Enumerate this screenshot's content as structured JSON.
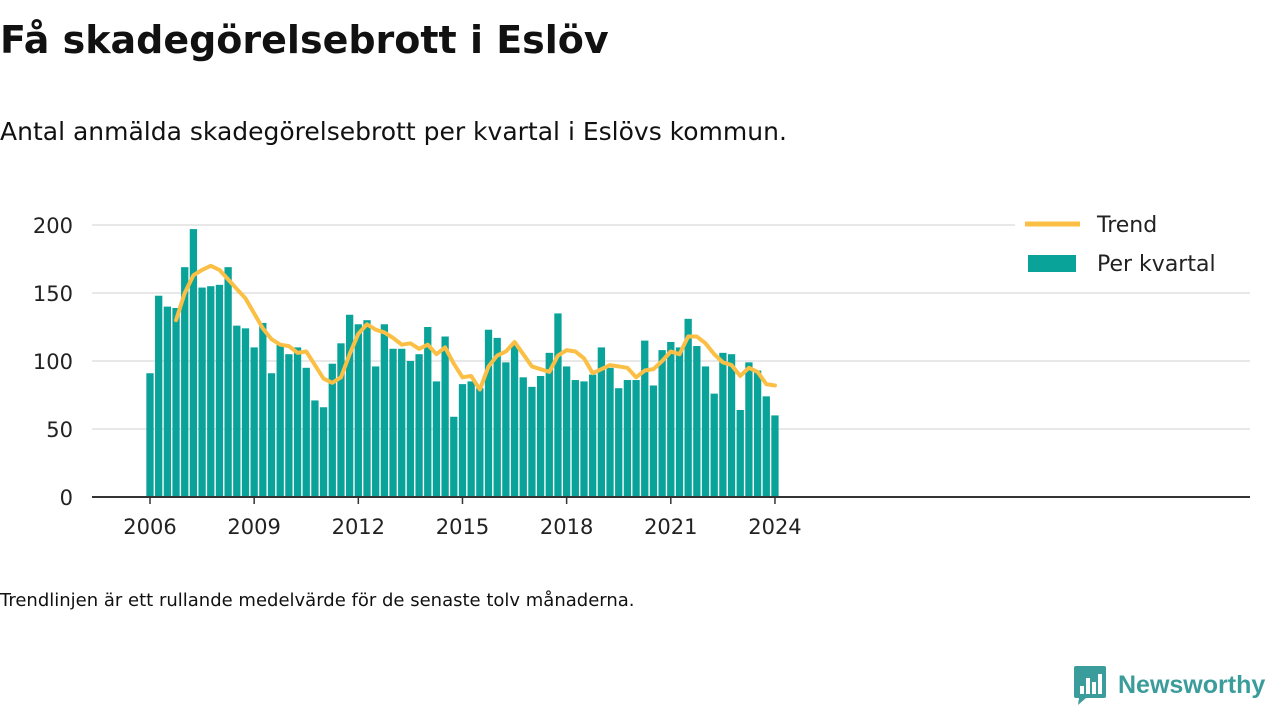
{
  "header": {
    "title": "Få skadegörelsebrott i Eslöv",
    "subtitle": "Antal anmälda skadegörelsebrott per kvartal i Eslövs kommun."
  },
  "footer": {
    "note": "Trendlinjen är ett rullande medelvärde för de senaste tolv månaderna.",
    "brand": "Newsworthy"
  },
  "colors": {
    "bars": "#0aa39a",
    "trend": "#fbbf45",
    "brand": "#3a9d9b"
  },
  "chart_data": {
    "type": "bar",
    "x_unit": "quarter",
    "x": [
      "2006Q1",
      "2006Q2",
      "2006Q3",
      "2006Q4",
      "2007Q1",
      "2007Q2",
      "2007Q3",
      "2007Q4",
      "2008Q1",
      "2008Q2",
      "2008Q3",
      "2008Q4",
      "2009Q1",
      "2009Q2",
      "2009Q3",
      "2009Q4",
      "2010Q1",
      "2010Q2",
      "2010Q3",
      "2010Q4",
      "2011Q1",
      "2011Q2",
      "2011Q3",
      "2011Q4",
      "2012Q1",
      "2012Q2",
      "2012Q3",
      "2012Q4",
      "2013Q1",
      "2013Q2",
      "2013Q3",
      "2013Q4",
      "2014Q1",
      "2014Q2",
      "2014Q3",
      "2014Q4",
      "2015Q1",
      "2015Q2",
      "2015Q3",
      "2015Q4",
      "2016Q1",
      "2016Q2",
      "2016Q3",
      "2016Q4",
      "2017Q1",
      "2017Q2",
      "2017Q3",
      "2017Q4",
      "2018Q1",
      "2018Q2",
      "2018Q3",
      "2018Q4",
      "2019Q1",
      "2019Q2",
      "2019Q3",
      "2019Q4",
      "2020Q1",
      "2020Q2",
      "2020Q3",
      "2020Q4",
      "2021Q1",
      "2021Q2",
      "2021Q3",
      "2021Q4",
      "2022Q1",
      "2022Q2",
      "2022Q3",
      "2022Q4",
      "2023Q1",
      "2023Q2",
      "2023Q3",
      "2023Q4",
      "2024Q1"
    ],
    "series": [
      {
        "name": "Per kvartal",
        "type": "bar",
        "values": [
          91,
          148,
          140,
          139,
          169,
          197,
          154,
          155,
          156,
          169,
          126,
          124,
          110,
          128,
          91,
          112,
          105,
          110,
          95,
          71,
          66,
          98,
          113,
          134,
          127,
          130,
          96,
          127,
          109,
          109,
          100,
          105,
          125,
          85,
          118,
          59,
          83,
          85,
          80,
          123,
          117,
          99,
          112,
          88,
          81,
          89,
          106,
          135,
          96,
          86,
          85,
          90,
          110,
          95,
          80,
          86,
          86,
          115,
          82,
          108,
          114,
          110,
          131,
          111,
          96,
          76,
          106,
          105,
          64,
          99,
          93,
          74,
          60
        ]
      },
      {
        "name": "Trend",
        "type": "line",
        "values": [
          null,
          null,
          null,
          130,
          150,
          163,
          167,
          170,
          167,
          160,
          153,
          146,
          135,
          124,
          116,
          112,
          111,
          106,
          107,
          97,
          87,
          84,
          88,
          105,
          120,
          127,
          123,
          121,
          117,
          112,
          113,
          109,
          112,
          105,
          110,
          98,
          88,
          89,
          79,
          96,
          104,
          107,
          114,
          105,
          96,
          94,
          92,
          104,
          108,
          107,
          102,
          91,
          94,
          97,
          96,
          95,
          88,
          93,
          94,
          100,
          107,
          105,
          118,
          118,
          113,
          105,
          99,
          97,
          89,
          95,
          92,
          83,
          82
        ]
      }
    ],
    "x_ticks": [
      "2006",
      "2009",
      "2012",
      "2015",
      "2018",
      "2021",
      "2024"
    ],
    "y_ticks": [
      0,
      50,
      100,
      150,
      200
    ],
    "ylim": [
      0,
      210
    ],
    "grid": true,
    "legend_position": "top-right"
  }
}
